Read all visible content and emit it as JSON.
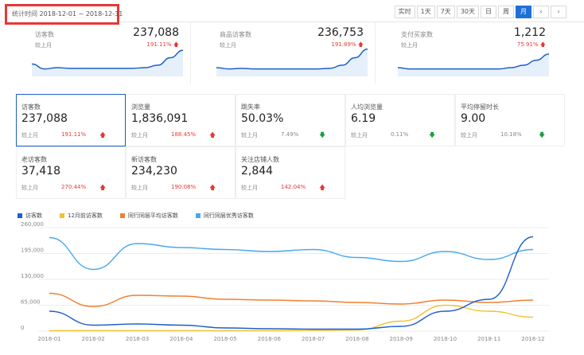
{
  "header": {
    "period_label": "统计时间",
    "period_value": "2018-12-01 ~ 2018-12-31",
    "range_buttons": [
      {
        "label": "实时",
        "active": false
      },
      {
        "label": "1天",
        "active": false
      },
      {
        "label": "7天",
        "active": false
      },
      {
        "label": "30天",
        "active": false
      },
      {
        "label": "日",
        "active": false
      },
      {
        "label": "周",
        "active": false
      },
      {
        "label": "月",
        "active": true
      }
    ],
    "prev_icon": "chevron-left-icon",
    "next_icon": "chevron-right-icon"
  },
  "summary": [
    {
      "name": "访客数",
      "compare": "较上月",
      "value": "237,088",
      "pct": "191.11%",
      "trend": "up",
      "spark": [
        20,
        12,
        14,
        13,
        13,
        13,
        13,
        13,
        13,
        14,
        18,
        30,
        42
      ]
    },
    {
      "name": "商品访客数",
      "compare": "较上月",
      "value": "236,753",
      "pct": "191.89%",
      "trend": "up",
      "spark": [
        14,
        12,
        13,
        12,
        12,
        12,
        12,
        12,
        12,
        13,
        18,
        30,
        44
      ]
    },
    {
      "name": "支付买家数",
      "compare": "较上月",
      "value": "1,212",
      "pct": "75.91%",
      "trend": "up",
      "spark": [
        14,
        12,
        12,
        12,
        12,
        12,
        12,
        12,
        12,
        14,
        18,
        26,
        36
      ]
    }
  ],
  "metrics": [
    {
      "name": "访客数",
      "value": "237,088",
      "compare": "较上月",
      "pct": "191.11%",
      "trend": "up",
      "selected": true
    },
    {
      "name": "浏览量",
      "value": "1,836,091",
      "compare": "较上月",
      "pct": "188.45%",
      "trend": "up",
      "selected": false
    },
    {
      "name": "跳失率",
      "value": "50.03%",
      "compare": "较上月",
      "pct": "7.49%",
      "trend": "down",
      "selected": false
    },
    {
      "name": "人均浏览量",
      "value": "6.19",
      "compare": "较上月",
      "pct": "0.11%",
      "trend": "down",
      "selected": false
    },
    {
      "name": "平均停留时长",
      "value": "9.00",
      "compare": "较上月",
      "pct": "10.18%",
      "trend": "down",
      "selected": false
    },
    {
      "name": "老访客数",
      "value": "37,418",
      "compare": "较上月",
      "pct": "270.44%",
      "trend": "up",
      "selected": false
    },
    {
      "name": "新访客数",
      "value": "234,230",
      "compare": "较上月",
      "pct": "190.08%",
      "trend": "up",
      "selected": false
    },
    {
      "name": "关注店铺人数",
      "value": "2,844",
      "compare": "较上月",
      "pct": "142.04%",
      "trend": "up",
      "selected": false
    }
  ],
  "colors": {
    "accent": "#1e6fd9",
    "up": "#e53935",
    "down": "#1a9e3f"
  },
  "chart_data": {
    "type": "line",
    "x": [
      "2018-01",
      "2018-02",
      "2018-03",
      "2018-04",
      "2018-05",
      "2018-06",
      "2018-07",
      "2018-08",
      "2018-09",
      "2018-10",
      "2018-11",
      "2018-12"
    ],
    "ylim": [
      0,
      260000
    ],
    "yticks": [
      "0",
      "65,000",
      "130,000",
      "195,000",
      "260,000"
    ],
    "legend_position": "top-left",
    "series": [
      {
        "name": "访客数",
        "color": "#1e5fc9",
        "values": [
          50000,
          15000,
          18000,
          15000,
          8000,
          6000,
          5000,
          5000,
          12000,
          50000,
          80000,
          237000
        ]
      },
      {
        "name": "12月前访客数",
        "color": "#f2c230",
        "values": [
          1000,
          1000,
          1000,
          1000,
          1000,
          1000,
          2000,
          3000,
          25000,
          65000,
          50000,
          35000
        ]
      },
      {
        "name": "同行同层平均访客数",
        "color": "#f08030",
        "values": [
          95000,
          62000,
          90000,
          88000,
          80000,
          78000,
          76000,
          72000,
          68000,
          78000,
          72000,
          78000
        ]
      },
      {
        "name": "同行同层优秀访客数",
        "color": "#4aa8f0",
        "values": [
          235000,
          155000,
          220000,
          210000,
          205000,
          200000,
          205000,
          185000,
          175000,
          200000,
          180000,
          205000
        ]
      }
    ]
  }
}
